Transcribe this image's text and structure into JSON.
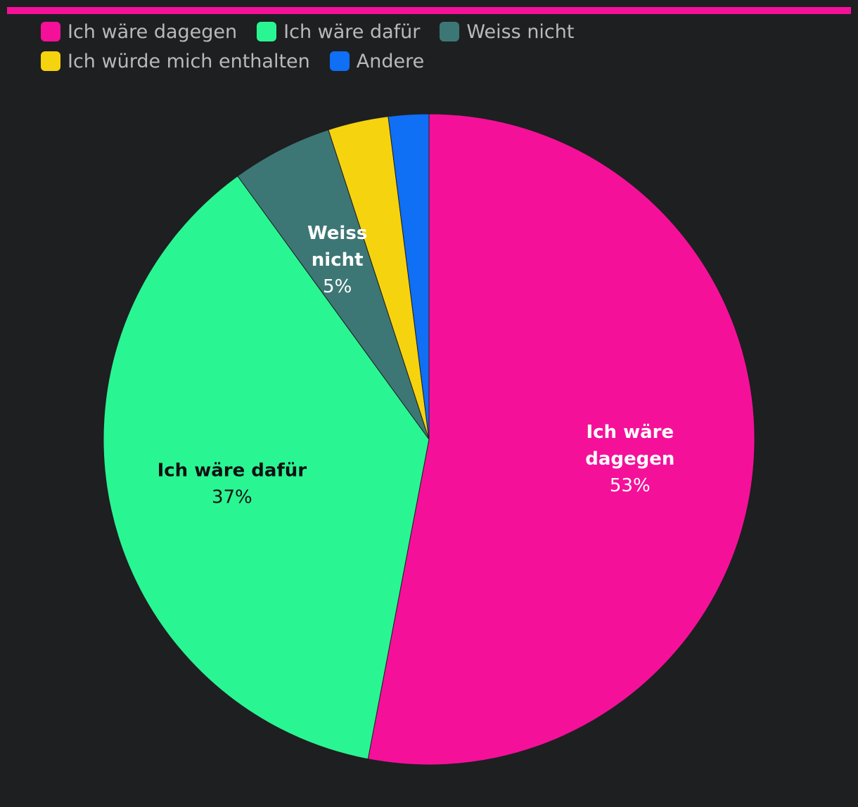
{
  "chart_data": {
    "type": "pie",
    "title": "",
    "legend_position": "top-left",
    "slices": [
      {
        "name": "Ich wäre dagegen",
        "value": 53,
        "color": "#f5109a",
        "label_lines": [
          "Ich wäre",
          "dagegen"
        ],
        "pct_label": "53%",
        "label_color": "#ffffff"
      },
      {
        "name": "Ich wäre dafür",
        "value": 37,
        "color": "#2af593",
        "label_lines": [
          "Ich wäre dafür"
        ],
        "pct_label": "37%",
        "label_color": "#111111"
      },
      {
        "name": "Weiss nicht",
        "value": 5,
        "color": "#3d7775",
        "label_lines": [
          "Weiss",
          "nicht"
        ],
        "pct_label": "5%",
        "label_color": "#ffffff"
      },
      {
        "name": "Ich würde mich enthalten",
        "value": 3,
        "color": "#f6d30f",
        "label_lines": [],
        "pct_label": "",
        "label_color": "#111111"
      },
      {
        "name": "Andere",
        "value": 2,
        "color": "#0f6ff5",
        "label_lines": [],
        "pct_label": "",
        "label_color": "#ffffff"
      }
    ]
  },
  "accent_color": "#f5109a"
}
